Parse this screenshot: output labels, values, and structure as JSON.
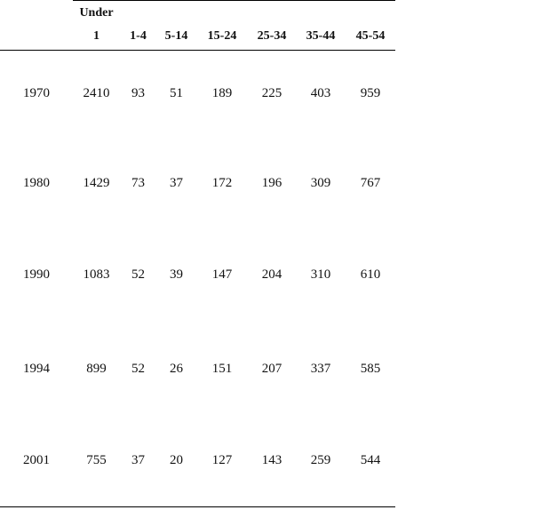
{
  "table": {
    "columns": [
      "Under 1",
      "1-4",
      "5-14",
      "15-24",
      "25-34",
      "35-44",
      "45-54"
    ],
    "rows": [
      [
        1970,
        2410,
        93,
        51,
        189,
        225,
        403,
        959
      ],
      [
        1980,
        1429,
        73,
        37,
        172,
        196,
        309,
        767
      ],
      [
        1990,
        1083,
        52,
        39,
        147,
        204,
        310,
        610
      ],
      [
        1994,
        899,
        52,
        26,
        151,
        207,
        337,
        585
      ],
      [
        2001,
        755,
        37,
        20,
        127,
        143,
        259,
        544
      ]
    ]
  }
}
